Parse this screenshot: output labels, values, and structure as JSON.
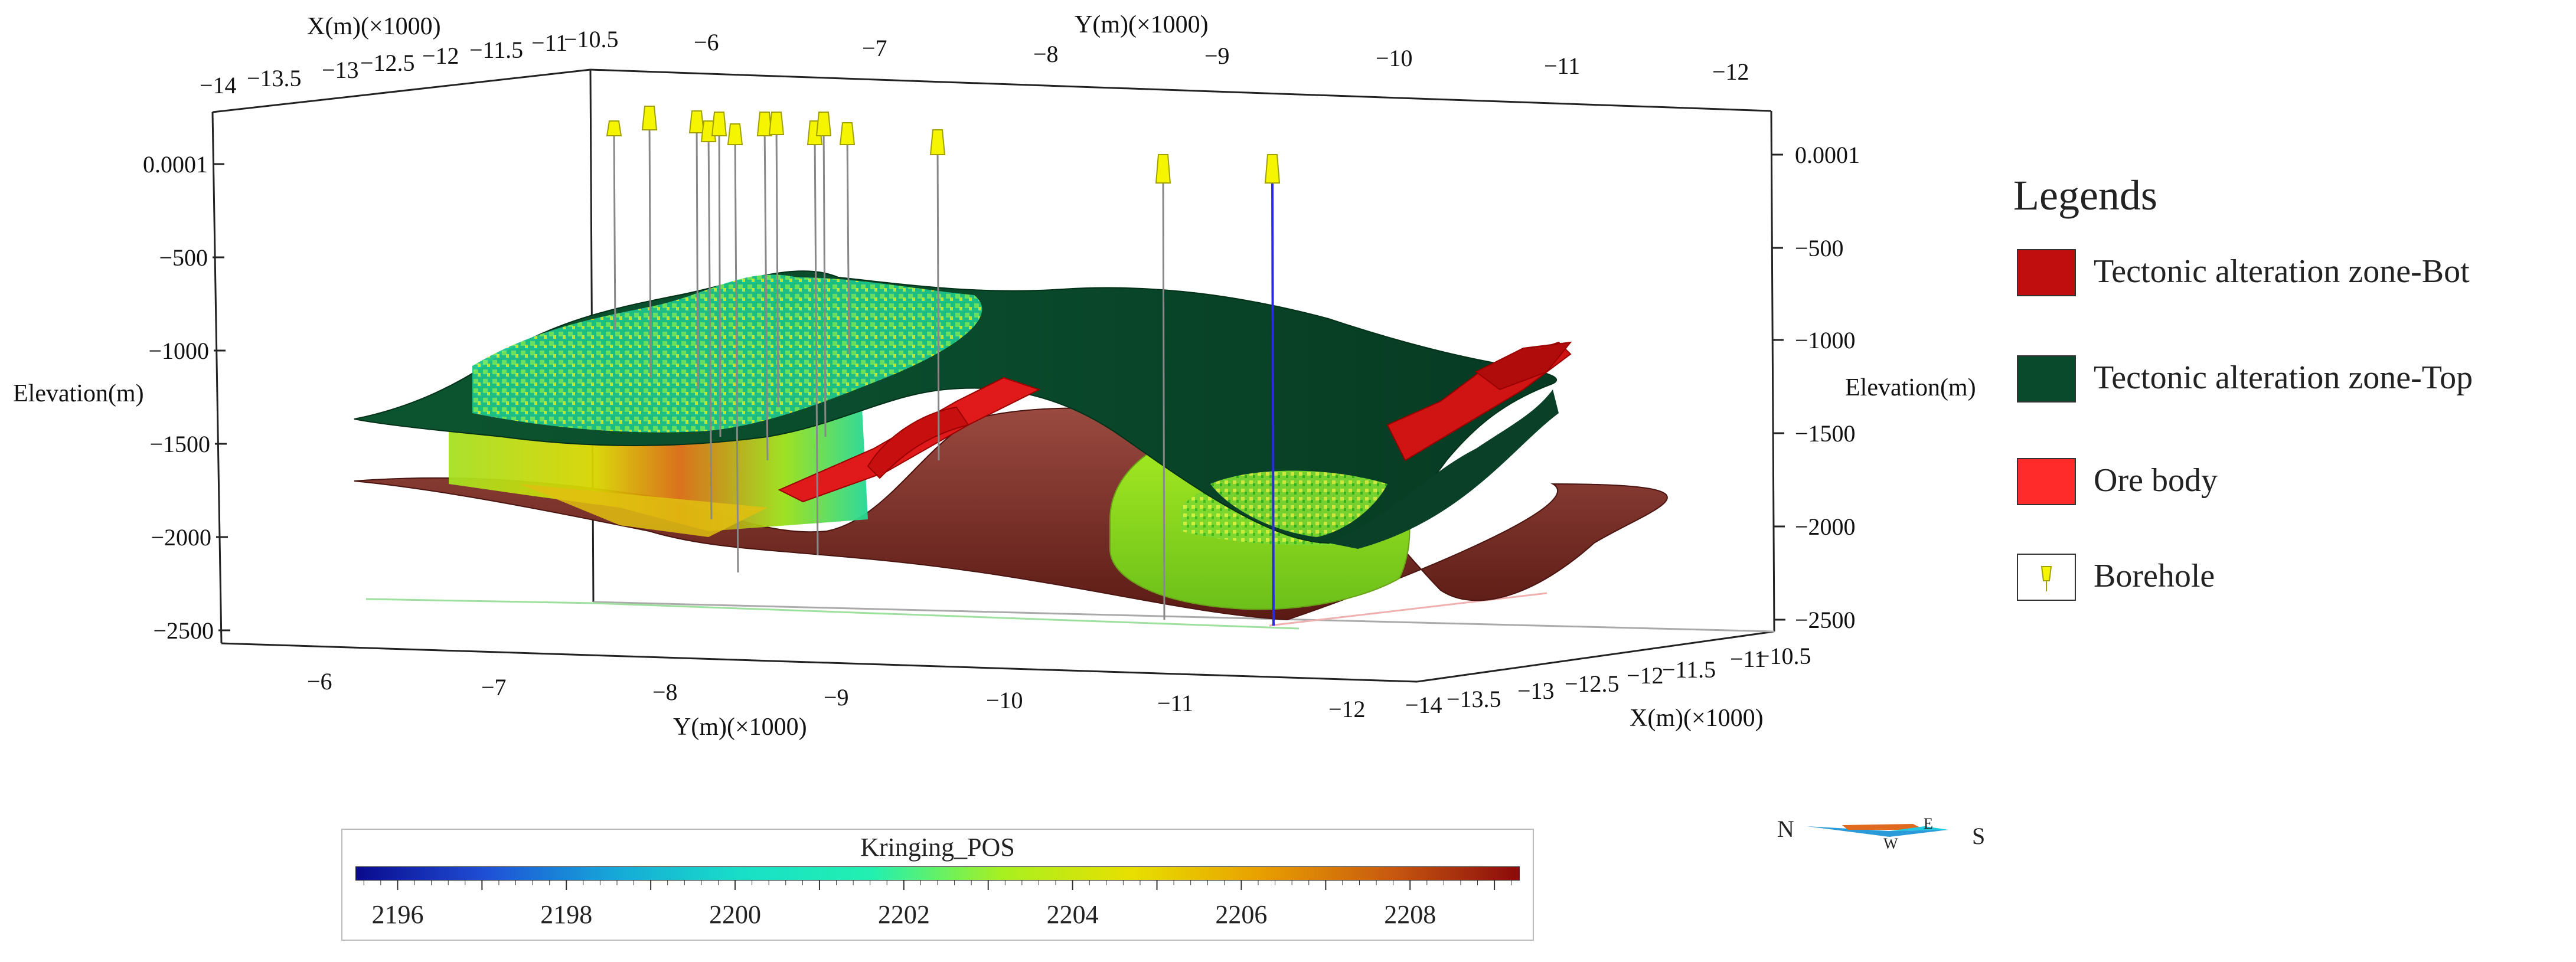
{
  "axes": {
    "x_top_label": "X(m)(×1000)",
    "y_top_label": "Y(m)(×1000)",
    "y_bottom_label": "Y(m)(×1000)",
    "x_bottom_label": "X(m)(×1000)",
    "elevation_left_label": "Elevation(m)",
    "elevation_right_label": "Elevation(m)",
    "x_ticks_top": [
      "−14",
      "−13.5",
      "−13",
      "−12.5",
      "−12",
      "−11.5",
      "−11",
      "−10.5"
    ],
    "y_ticks_top": [
      "−6",
      "−7",
      "−8",
      "−9",
      "−10",
      "−11",
      "−12"
    ],
    "y_ticks_bottom": [
      "−6",
      "−7",
      "−8",
      "−9",
      "−10",
      "−11",
      "−12"
    ],
    "x_ticks_bottom": [
      "−14",
      "−13.5",
      "−13",
      "−12.5",
      "−12",
      "−11.5",
      "−11",
      "−10.5"
    ],
    "elev_ticks_left": [
      "0.0001",
      "−500",
      "−1000",
      "−1500",
      "−2000",
      "−2500"
    ],
    "elev_ticks_right": [
      "0.0001",
      "−500",
      "−1000",
      "−1500",
      "−2000",
      "−2500"
    ]
  },
  "legend": {
    "title": "Legends",
    "items": [
      {
        "label": "Tectonic alteration zone-Bot",
        "color": "#c00d0d",
        "icon": "fill-swatch"
      },
      {
        "label": "Tectonic alteration zone-Top",
        "color": "#0a4a2c",
        "icon": "fill-swatch"
      },
      {
        "label": "Ore body",
        "color": "#ff2a2a",
        "icon": "fill-swatch"
      },
      {
        "label": "Borehole",
        "color": "#f3f300",
        "icon": "borehole-icon"
      }
    ]
  },
  "colorbar": {
    "title": "Kringing_POS",
    "labels": [
      "2196",
      "2198",
      "2200",
      "2202",
      "2204",
      "2206",
      "2208"
    ],
    "min": 2195.5,
    "max": 2209.3,
    "colors": [
      "#0a0a8c",
      "#1f4fd6",
      "#16a8d8",
      "#18e0c8",
      "#22f0b0",
      "#a8f020",
      "#e8e000",
      "#e8a000",
      "#c85a10",
      "#8a0a0a"
    ]
  },
  "compass": {
    "north": "N",
    "south": "S",
    "east": "E",
    "west": "W"
  },
  "colors": {
    "top_surface": "#0b4a2c",
    "bottom_surface": "#6e1f1a",
    "ore_body": "#e01a1a",
    "borehole_marker": "#f5f500",
    "highlight_borehole": "#2a2ae0"
  }
}
